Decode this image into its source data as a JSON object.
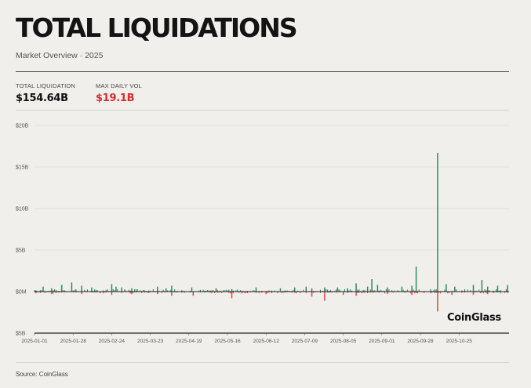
{
  "header": {
    "title": "TOTAL LIQUIDATIONS",
    "subtitle": "Market Overview · 2025"
  },
  "stats": [
    {
      "label": "TOTAL LIQUIDATION",
      "value": "$154.64B",
      "color": "#111111"
    },
    {
      "label": "MAX DAILY VOL",
      "value": "$19.1B",
      "color": "#d92b2b"
    }
  ],
  "watermark": "CoinGlass",
  "footer": {
    "source": "Source: CoinGlass"
  },
  "colors": {
    "long": "#2e8b62",
    "short": "#d94545",
    "axis": "#222222",
    "grid": "#e0ddd7"
  },
  "chart_data": {
    "type": "bar",
    "title": "TOTAL LIQUIDATIONS",
    "x_range": [
      "2025-01-01",
      "2025-11-29"
    ],
    "ylim": [
      -5,
      20
    ],
    "y_unit": "$B",
    "y_ticks": [
      {
        "value": 20,
        "label": "$20B"
      },
      {
        "value": 15,
        "label": "$15B"
      },
      {
        "value": 10,
        "label": "$10B"
      },
      {
        "value": 5,
        "label": "$5B"
      },
      {
        "value": 0,
        "label": "$0M"
      },
      {
        "value": -5,
        "label": "$5B"
      }
    ],
    "x_ticks": [
      "2025-01-01",
      "2025-01-28",
      "2025-02-24",
      "2025-03-23",
      "2025-04-19",
      "2025-05-16",
      "2025-06-12",
      "2025-07-09",
      "2025-08-05",
      "2025-09-01",
      "2025-09-28",
      "2025-10-25"
    ],
    "grid": true,
    "legend": "none",
    "series": [
      {
        "name": "Long",
        "color": "#2e8b62",
        "dates": [
          "2025-01-07",
          "2025-01-13",
          "2025-01-20",
          "2025-01-27",
          "2025-02-03",
          "2025-02-10",
          "2025-02-24",
          "2025-02-27",
          "2025-03-03",
          "2025-03-10",
          "2025-03-28",
          "2025-04-03",
          "2025-04-07",
          "2025-04-21",
          "2025-05-08",
          "2025-05-19",
          "2025-06-05",
          "2025-06-22",
          "2025-07-02",
          "2025-07-10",
          "2025-07-14",
          "2025-07-23",
          "2025-08-01",
          "2025-08-08",
          "2025-08-14",
          "2025-08-22",
          "2025-08-25",
          "2025-08-29",
          "2025-09-05",
          "2025-09-15",
          "2025-09-22",
          "2025-09-25",
          "2025-10-10",
          "2025-10-16",
          "2025-10-22",
          "2025-11-04",
          "2025-11-10",
          "2025-11-14",
          "2025-11-21",
          "2025-11-28"
        ],
        "values": [
          0.6,
          0.4,
          0.8,
          1.1,
          0.7,
          0.5,
          0.9,
          0.6,
          0.5,
          0.4,
          0.6,
          0.4,
          0.7,
          0.5,
          0.4,
          0.3,
          0.5,
          0.4,
          0.5,
          0.6,
          0.4,
          0.5,
          0.5,
          0.4,
          1.0,
          0.6,
          1.5,
          0.8,
          0.5,
          0.6,
          0.7,
          3.0,
          16.7,
          0.9,
          0.6,
          0.8,
          1.4,
          0.6,
          0.7,
          0.8
        ]
      },
      {
        "name": "Short",
        "color": "#d94545",
        "dates": [
          "2025-01-02",
          "2025-01-13",
          "2025-02-03",
          "2025-02-24",
          "2025-03-10",
          "2025-03-28",
          "2025-04-07",
          "2025-04-22",
          "2025-05-19",
          "2025-06-12",
          "2025-07-14",
          "2025-07-23",
          "2025-08-05",
          "2025-08-14",
          "2025-09-05",
          "2025-09-22",
          "2025-10-10",
          "2025-10-20",
          "2025-11-04",
          "2025-11-14"
        ],
        "values": [
          -0.2,
          -0.3,
          -0.3,
          -0.4,
          -0.3,
          -0.3,
          -0.5,
          -0.5,
          -0.8,
          -0.3,
          -0.6,
          -1.1,
          -0.4,
          -0.5,
          -0.3,
          -0.4,
          -2.4,
          -0.4,
          -0.4,
          -0.3
        ]
      }
    ]
  }
}
